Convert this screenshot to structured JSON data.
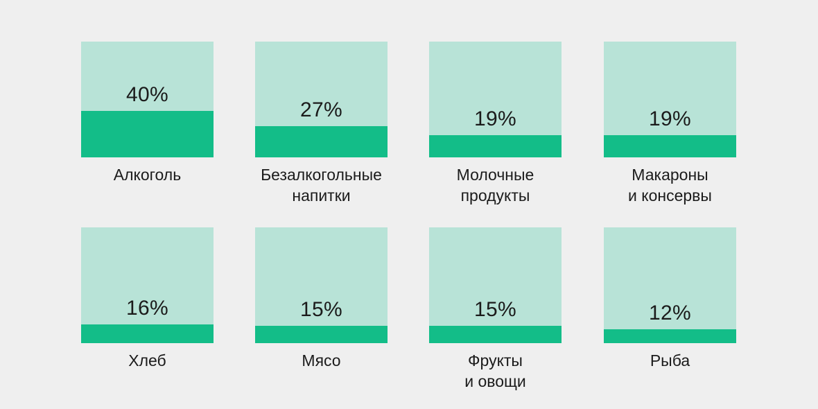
{
  "chart_data": {
    "type": "bar",
    "categories": [
      "Алкоголь",
      "Безалкогольные\nнапитки",
      "Молочные\nпродукты",
      "Макароны\nи консервы",
      "Хлеб",
      "Мясо",
      "Фрукты\nи овощи",
      "Рыба"
    ],
    "values": [
      40,
      27,
      19,
      19,
      16,
      15,
      15,
      12
    ],
    "value_labels": [
      "40%",
      "27%",
      "19%",
      "19%",
      "16%",
      "15%",
      "15%",
      "12%"
    ],
    "ylim": [
      0,
      100
    ],
    "colors": {
      "background": "#efefef",
      "tile": "#b8e3d7",
      "fill": "#13bd88",
      "text": "#1b1b1b"
    }
  }
}
